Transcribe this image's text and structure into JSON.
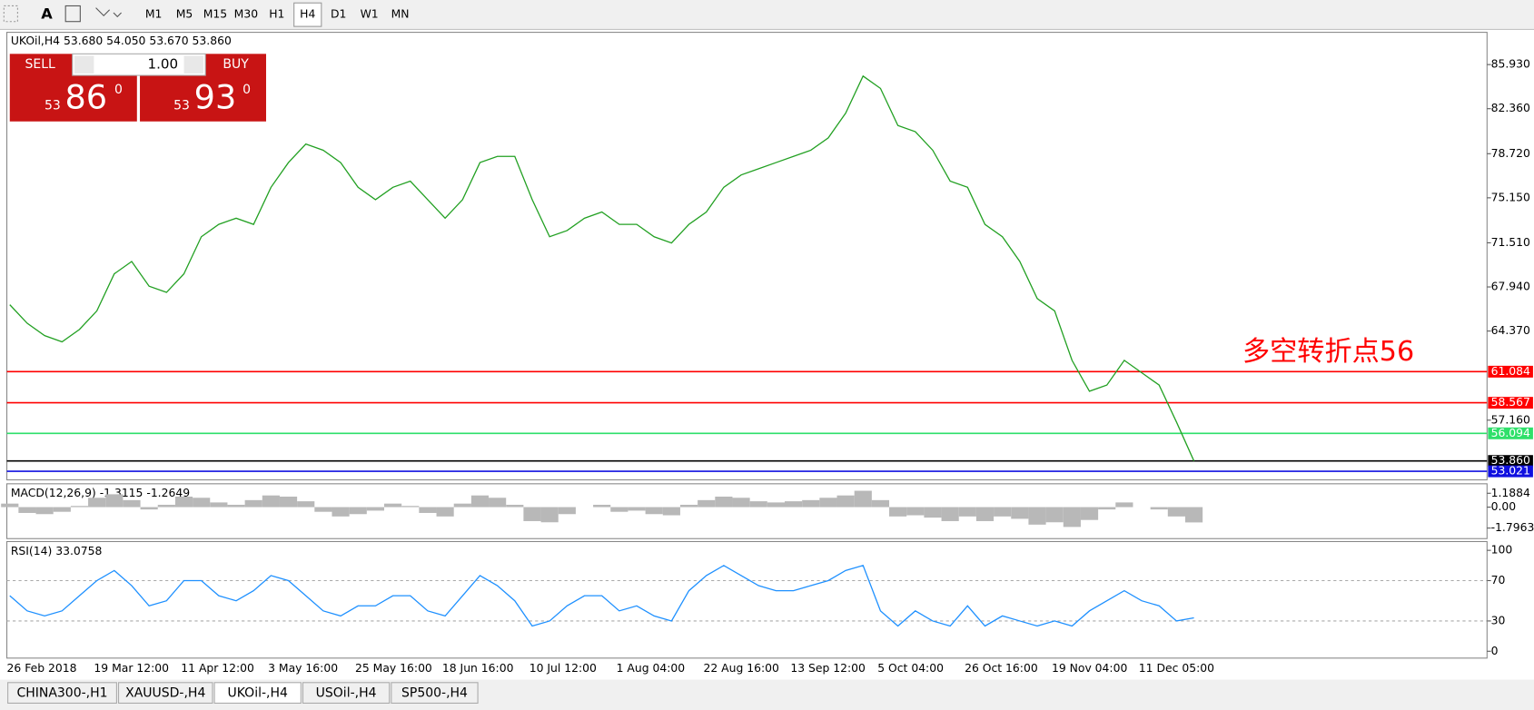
{
  "toolbar": {
    "timeframes": [
      "M1",
      "M5",
      "M15",
      "M30",
      "H1",
      "H4",
      "D1",
      "W1",
      "MN"
    ],
    "active_timeframe": "H4"
  },
  "trade_panel": {
    "sell_label": "SELL",
    "buy_label": "BUY",
    "lots": "1.00",
    "bid": {
      "big": "53",
      "main": "86",
      "small": "0"
    },
    "ask": {
      "big": "53",
      "main": "93",
      "small": "0"
    }
  },
  "chart_data": [
    {
      "type": "line",
      "title": "UKOil,H4 53.680 54.050 53.670 53.860",
      "color": "#22a022",
      "categories": [
        "26 Feb 2018",
        null,
        null,
        null,
        null,
        "19 Mar 12:00",
        null,
        null,
        null,
        null,
        "11 Apr 12:00",
        null,
        null,
        null,
        null,
        "3 May 16:00",
        null,
        null,
        null,
        null,
        "25 May 16:00",
        null,
        null,
        null,
        null,
        "18 Jun 16:00",
        null,
        null,
        null,
        null,
        "10 Jul 12:00",
        null,
        null,
        null,
        null,
        "1 Aug 04:00",
        null,
        null,
        null,
        null,
        "22 Aug 16:00",
        null,
        null,
        null,
        null,
        "13 Sep 12:00",
        null,
        null,
        null,
        null,
        "5 Oct 04:00",
        null,
        null,
        null,
        null,
        "26 Oct 16:00",
        null,
        null,
        null,
        null,
        "19 Nov 04:00",
        null,
        null,
        null,
        null,
        "11 Dec 05:00",
        null,
        null,
        null
      ],
      "values": [
        66.5,
        65,
        64,
        63.5,
        64.5,
        66,
        69,
        70,
        68,
        67.5,
        69,
        72,
        73,
        73.5,
        73,
        76,
        78,
        79.5,
        79,
        78,
        76,
        75,
        76,
        76.5,
        75,
        73.5,
        75,
        78,
        78.5,
        78.5,
        75,
        72,
        72.5,
        73.5,
        74,
        73,
        73,
        72,
        71.5,
        73,
        74,
        76,
        77,
        77.5,
        78,
        78.5,
        79,
        80,
        82,
        85,
        84,
        81,
        80.5,
        79,
        76.5,
        76,
        73,
        72,
        70,
        67,
        66,
        62,
        59.5,
        60,
        62,
        61,
        60,
        57,
        53.86
      ],
      "ylim": [
        52.33,
        88.54
      ],
      "yticks": [
        {
          "value": 85.93,
          "label": "85.930"
        },
        {
          "value": 82.36,
          "label": "82.360"
        },
        {
          "value": 78.72,
          "label": "78.720"
        },
        {
          "value": 75.15,
          "label": "75.150"
        },
        {
          "value": 71.51,
          "label": "71.510"
        },
        {
          "value": 67.94,
          "label": "67.940"
        },
        {
          "value": 64.37,
          "label": "64.370"
        },
        {
          "value": 57.16,
          "label": "57.160"
        }
      ],
      "levels": [
        {
          "value": 61.084,
          "color": "#ff0000"
        },
        {
          "value": 58.567,
          "color": "#ff0000"
        },
        {
          "value": 56.094,
          "color": "#2ee06a"
        },
        {
          "value": 53.86,
          "label": "53.860",
          "color": "#000000"
        },
        {
          "value": 53.021,
          "color": "#1010e0"
        }
      ],
      "annotation": "多空转折点56",
      "annotation_color": "#ff0000"
    },
    {
      "type": "bar",
      "title": "MACD(12,26,9) -1.3115 -1.2649",
      "color": "#b8b8b8",
      "values": [
        0.3,
        -0.5,
        -0.6,
        -0.4,
        0.1,
        0.8,
        1.1,
        0.6,
        -0.2,
        0.2,
        0.9,
        0.8,
        0.4,
        0.2,
        0.6,
        1.0,
        0.9,
        0.5,
        -0.4,
        -0.8,
        -0.6,
        -0.3,
        0.3,
        0.1,
        -0.5,
        -0.8,
        0.3,
        1.0,
        0.8,
        0.2,
        -1.2,
        -1.3,
        -0.6,
        0.0,
        0.2,
        -0.4,
        -0.3,
        -0.6,
        -0.7,
        0.2,
        0.6,
        0.9,
        0.8,
        0.5,
        0.4,
        0.5,
        0.6,
        0.8,
        1.0,
        1.4,
        0.6,
        -0.8,
        -0.7,
        -0.9,
        -1.2,
        -0.8,
        -1.2,
        -0.8,
        -1.0,
        -1.5,
        -1.3,
        -1.7,
        -1.1,
        -0.2,
        0.4,
        0.0,
        -0.2,
        -0.8,
        -1.3115
      ],
      "ylim": [
        -2.7,
        2.0
      ],
      "yticks": [
        1.1884,
        {
          "value": 0,
          "label": "0.00"
        },
        -1.7963
      ]
    },
    {
      "type": "line",
      "title": "RSI(14) 33.0758",
      "color": "#1e90ff",
      "values": [
        55,
        40,
        35,
        40,
        55,
        70,
        80,
        65,
        45,
        50,
        70,
        70,
        55,
        50,
        60,
        75,
        70,
        55,
        40,
        35,
        45,
        45,
        55,
        55,
        40,
        35,
        55,
        75,
        65,
        50,
        25,
        30,
        45,
        55,
        55,
        40,
        45,
        35,
        30,
        60,
        75,
        85,
        75,
        65,
        60,
        60,
        65,
        70,
        80,
        85,
        40,
        25,
        40,
        30,
        25,
        45,
        25,
        35,
        30,
        25,
        30,
        25,
        40,
        50,
        60,
        50,
        45,
        30,
        33.0758
      ],
      "ylim": [
        -6.8,
        108.7
      ],
      "yticks": [
        100,
        70,
        30,
        0
      ]
    }
  ],
  "tabs": [
    "CHINA300-,H1",
    "XAUUSD-,H4",
    "UKOil-,H4",
    "USOil-,H4",
    "SP500-,H4"
  ],
  "active_tab": "UKOil-,H4"
}
